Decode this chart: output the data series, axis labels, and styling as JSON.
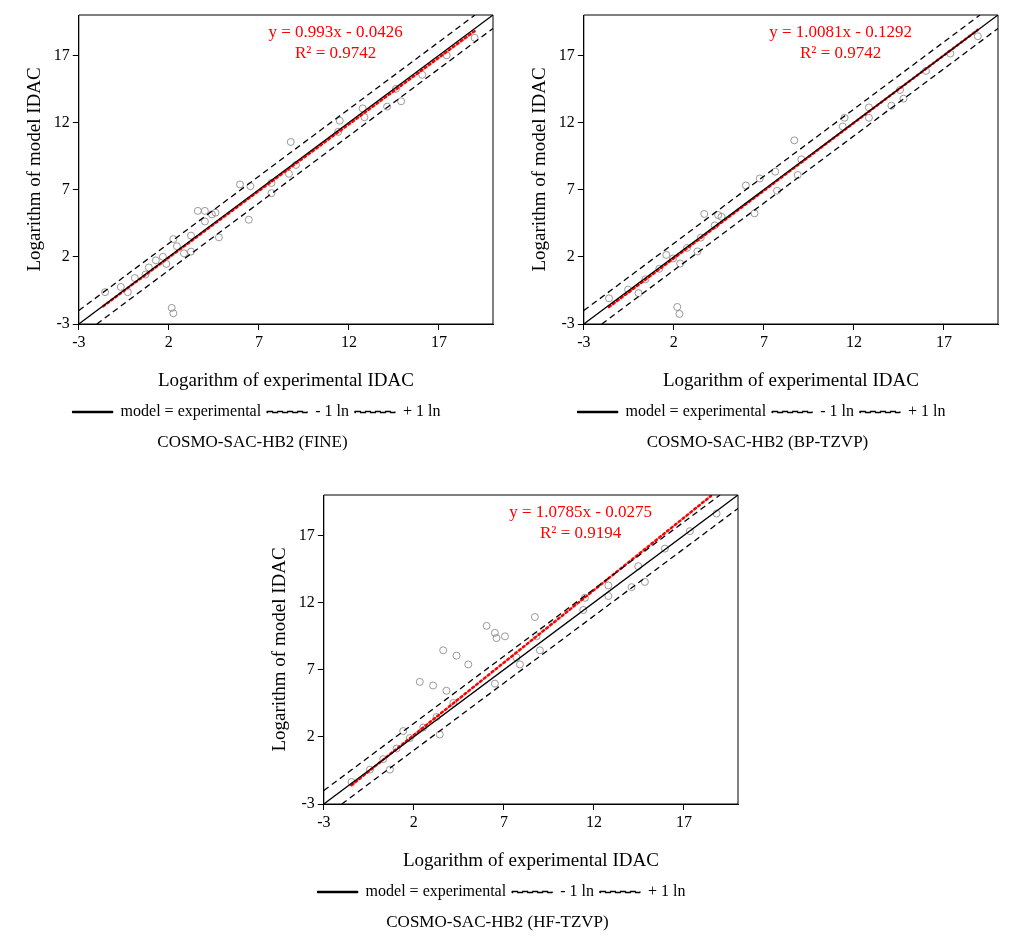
{
  "chart_data": [
    {
      "type": "scatter",
      "xlabel": "Logarithm of experimental IDAC",
      "ylabel": "Logarithm of model IDAC",
      "annotations": [
        "y = 0.993x - 0.0426",
        "R² = 0.9742",
        "COSMO-SAC-HB2 (FINE)"
      ],
      "xlim": [
        -3,
        20
      ],
      "ylim": [
        -3,
        20
      ],
      "xticks": [
        -3,
        2,
        7,
        12,
        17
      ],
      "yticks": [
        -3,
        2,
        7,
        12,
        17
      ],
      "grid": false,
      "legend": "bottom",
      "series": [
        {
          "type": "scatter",
          "color": "#808080",
          "marker": "circle",
          "x": [
            -1.54,
            -0.67,
            0.11,
            0.89,
            1.67,
            2.45,
            3.23,
            4.0,
            4.39,
            3.61,
            4.0,
            4.59,
            4.78,
            2.84,
            3.23,
            1.86,
            -0.28,
            1.28,
            0.7,
            2.25,
            5.95,
            6.53,
            7.7,
            7.7,
            6.44,
            8.77,
            9.06,
            8.67,
            11.4,
            11.49,
            12.76,
            12.86,
            14.12,
            14.61,
            14.9,
            16.07,
            17.43,
            18.98,
            2.16,
            2.25
          ],
          "values": [
            -0.63,
            -0.24,
            0.42,
            1.21,
            2.0,
            2.79,
            3.58,
            4.63,
            5.16,
            5.42,
            5.42,
            5.29,
            3.45,
            2.26,
            2.39,
            1.47,
            -0.63,
            1.74,
            0.68,
            3.32,
            7.39,
            7.26,
            7.5,
            6.74,
            4.76,
            10.55,
            8.84,
            8.18,
            11.3,
            12.13,
            13.05,
            12.39,
            13.18,
            14.5,
            13.58,
            15.55,
            17.0,
            18.3,
            -1.8,
            -2.2
          ]
        },
        {
          "type": "line",
          "name": "model = experimental",
          "color": "#000000",
          "marker": "none",
          "line_style": "solid",
          "x": [
            -3,
            20
          ],
          "values": [
            -3,
            20
          ]
        },
        {
          "type": "line",
          "name": "- 1 ln",
          "color": "#000000",
          "marker": "none",
          "line_style": "dashed",
          "x": [
            -2,
            20
          ],
          "values": [
            -3,
            19
          ]
        },
        {
          "type": "line",
          "name": "+ 1 ln",
          "color": "#000000",
          "marker": "none",
          "line_style": "dashed",
          "x": [
            -3,
            19
          ],
          "values": [
            -2,
            20
          ]
        },
        {
          "type": "line",
          "color": "#ff0000",
          "marker": "none",
          "line_style": "dotted",
          "x": [
            -1.64,
            18.98
          ],
          "values": [
            -1.67,
            18.8
          ]
        }
      ]
    },
    {
      "type": "scatter",
      "xlabel": "Logarithm of experimental IDAC",
      "ylabel": "Logarithm of model IDAC",
      "annotations": [
        "y = 1.0081x - 0.1292",
        "R² = 0.9742",
        "COSMO-SAC-HB2 (BP-TZVP)"
      ],
      "xlim": [
        -3,
        20
      ],
      "ylim": [
        -3,
        20
      ],
      "xticks": [
        -3,
        2,
        7,
        12,
        17
      ],
      "yticks": [
        -3,
        2,
        7,
        12,
        17
      ],
      "grid": false,
      "legend": "bottom",
      "series": [
        {
          "type": "scatter",
          "color": "#808080",
          "marker": "circle",
          "x": [
            -1.6,
            -0.54,
            0.42,
            1.19,
            1.96,
            2.73,
            3.5,
            4.27,
            4.65,
            3.69,
            4.46,
            3.31,
            2.35,
            0.04,
            1.58,
            6.0,
            6.77,
            7.63,
            7.73,
            6.48,
            8.69,
            9.08,
            8.88,
            11.38,
            11.48,
            12.83,
            12.83,
            14.08,
            14.56,
            14.75,
            16.0,
            17.35,
            18.88,
            2.19,
            2.31
          ],
          "values": [
            -1.09,
            -0.44,
            0.33,
            1.11,
            1.88,
            2.66,
            3.43,
            4.34,
            4.98,
            5.19,
            5.11,
            2.4,
            1.5,
            -0.7,
            2.14,
            7.31,
            7.83,
            8.34,
            6.92,
            5.24,
            10.67,
            9.25,
            8.09,
            11.7,
            12.35,
            13.12,
            12.35,
            13.25,
            14.42,
            13.77,
            15.84,
            17.13,
            18.42,
            -1.73,
            -2.25
          ]
        },
        {
          "type": "line",
          "name": "model = experimental",
          "color": "#000000",
          "marker": "none",
          "line_style": "solid",
          "x": [
            -3,
            20
          ],
          "values": [
            -3,
            20
          ]
        },
        {
          "type": "line",
          "name": "- 1 ln",
          "color": "#000000",
          "marker": "none",
          "line_style": "dashed",
          "x": [
            -2,
            20
          ],
          "values": [
            -3,
            19
          ]
        },
        {
          "type": "line",
          "name": "+ 1 ln",
          "color": "#000000",
          "marker": "none",
          "line_style": "dashed",
          "x": [
            -3,
            19
          ],
          "values": [
            -2,
            20
          ]
        },
        {
          "type": "line",
          "color": "#ff0000",
          "marker": "none",
          "line_style": "dotted",
          "x": [
            -1.6,
            18.88
          ],
          "values": [
            -1.74,
            18.9
          ]
        }
      ]
    },
    {
      "type": "scatter",
      "xlabel": "Logarithm of experimental IDAC",
      "ylabel": "Logarithm of model IDAC",
      "annotations": [
        "y = 1.0785x - 0.0275",
        "R² = 0.9194",
        "COSMO-SAC-HB2 (HF-TZVP)"
      ],
      "xlim": [
        -3,
        20
      ],
      "ylim": [
        -3,
        20
      ],
      "xticks": [
        -3,
        2,
        7,
        12,
        17
      ],
      "yticks": [
        -3,
        2,
        7,
        12,
        17
      ],
      "grid": false,
      "legend": "bottom",
      "series": [
        {
          "type": "scatter",
          "color": "#808080",
          "marker": "circle",
          "x": [
            -1.46,
            -0.44,
            0.3,
            1.04,
            1.78,
            2.52,
            3.26,
            4.19,
            0.67,
            3.44,
            1.41,
            2.33,
            3.07,
            3.81,
            3.63,
            4.37,
            5.02,
            6.04,
            6.5,
            7.06,
            6.59,
            7.7,
            7.89,
            6.5,
            8.72,
            8.81,
            9.0,
            11.41,
            11.5,
            12.8,
            12.8,
            14.09,
            14.46,
            14.83,
            15.94,
            17.33,
            18.81
          ],
          "values": [
            -1.36,
            -0.44,
            0.34,
            1.13,
            1.91,
            2.69,
            3.48,
            4.52,
            -0.44,
            2.17,
            2.43,
            6.09,
            5.82,
            5.43,
            8.44,
            8.04,
            7.39,
            10.26,
            9.74,
            9.48,
            9.35,
            7.91,
            7.39,
            5.96,
            10.92,
            9.48,
            8.44,
            11.44,
            12.35,
            13.27,
            12.48,
            13.14,
            14.7,
            13.53,
            16.01,
            17.31,
            18.62
          ]
        },
        {
          "type": "line",
          "name": "model = experimental",
          "color": "#000000",
          "marker": "none",
          "line_style": "solid",
          "x": [
            -3,
            20
          ],
          "values": [
            -3,
            20
          ]
        },
        {
          "type": "line",
          "name": "- 1 ln",
          "color": "#000000",
          "marker": "none",
          "line_style": "dashed",
          "x": [
            -2,
            20
          ],
          "values": [
            -3,
            19
          ]
        },
        {
          "type": "line",
          "name": "+ 1 ln",
          "color": "#000000",
          "marker": "none",
          "line_style": "dashed",
          "x": [
            -3,
            19
          ],
          "values": [
            -2,
            20
          ]
        },
        {
          "type": "line",
          "color": "#ff0000",
          "marker": "none",
          "line_style": "dotted",
          "x": [
            -1.46,
            18.5
          ],
          "values": [
            -1.6,
            19.93
          ]
        }
      ]
    }
  ]
}
